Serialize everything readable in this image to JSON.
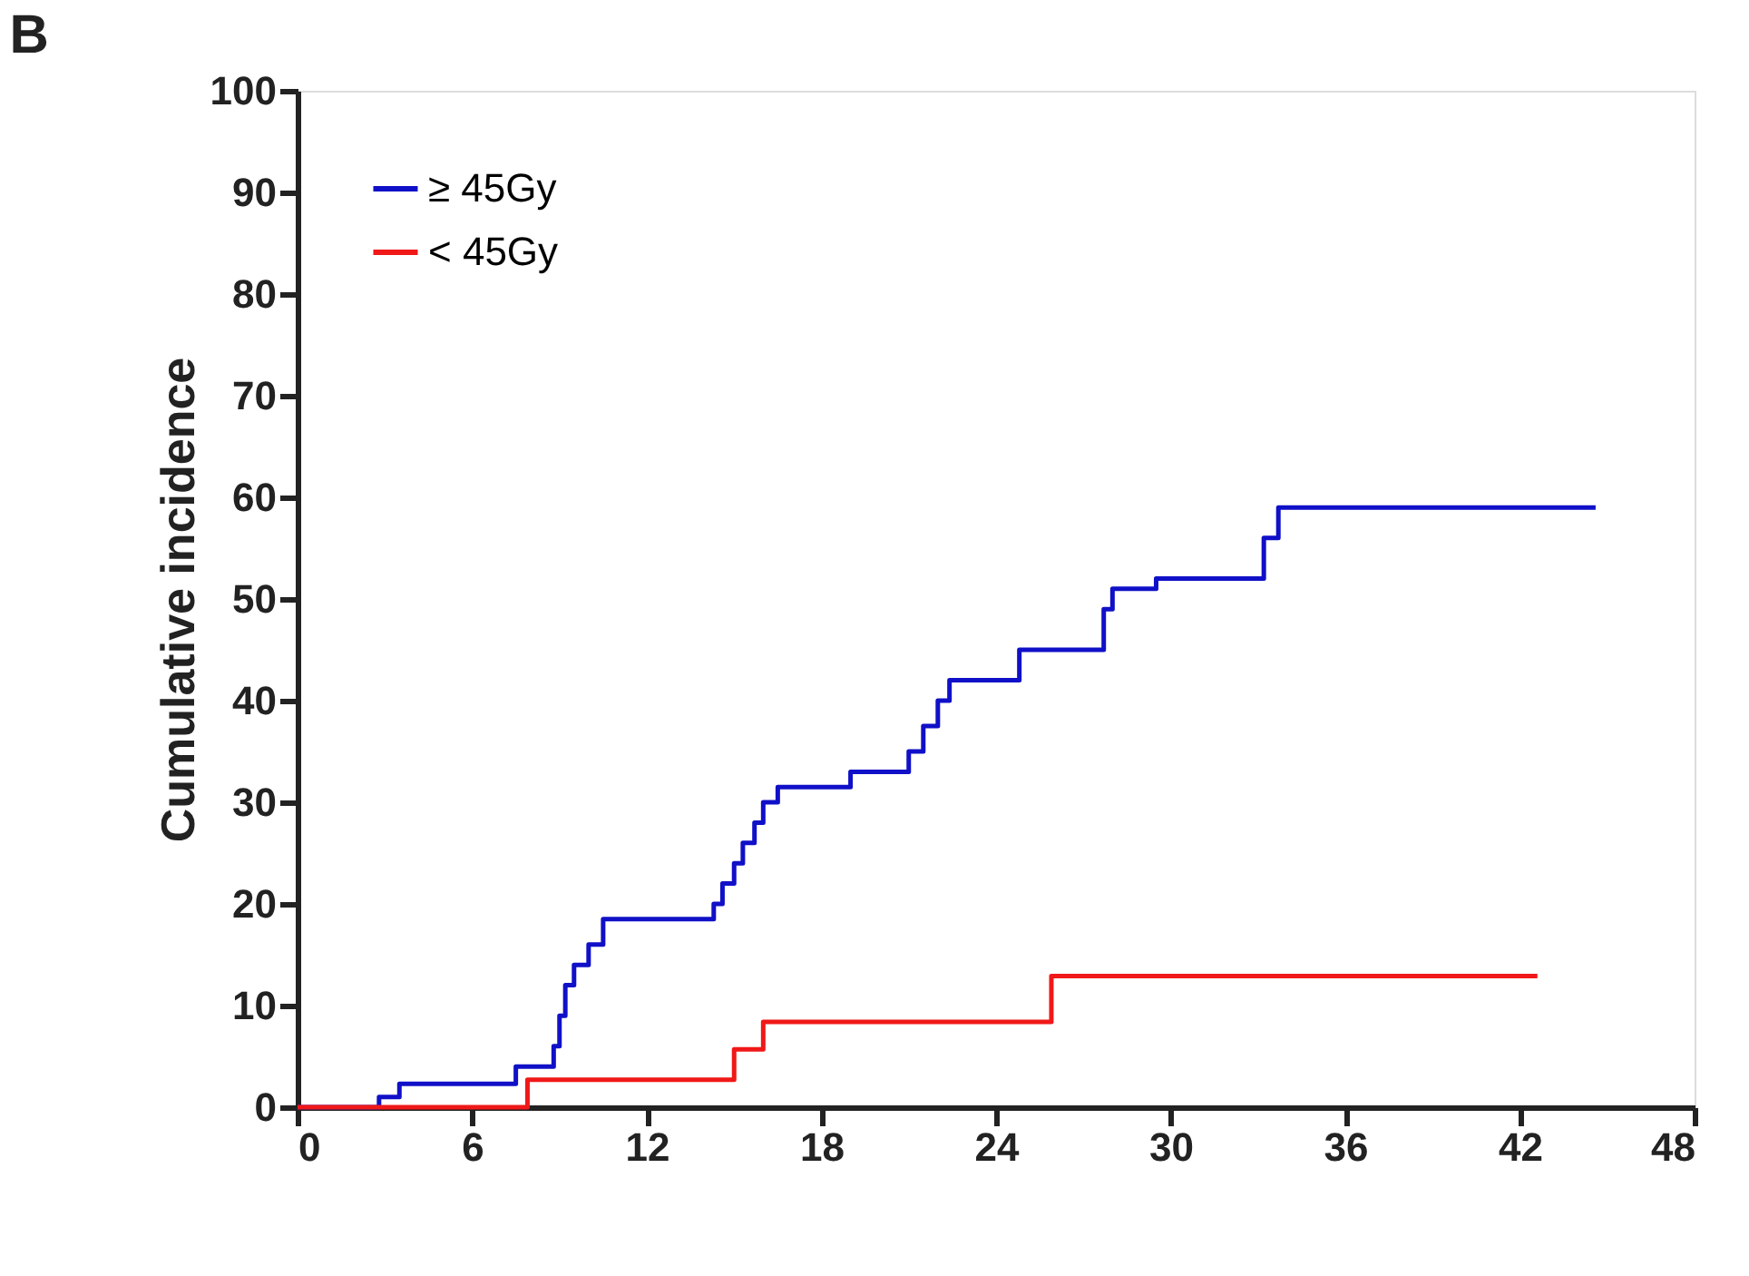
{
  "chart_data": {
    "type": "step",
    "title": "B",
    "ylabel": "Cumulative incidence",
    "xlim": [
      0,
      48
    ],
    "xticks": [
      0,
      6,
      12,
      18,
      24,
      30,
      36,
      42,
      48
    ],
    "ylim": [
      0,
      100
    ],
    "yticks": [
      0,
      10,
      20,
      30,
      40,
      50,
      60,
      70,
      80,
      90,
      100
    ],
    "grid": false,
    "legend": "top left",
    "line_style": "solid",
    "series": [
      {
        "name": "≥ 45Gy",
        "color": "#1010c8",
        "x": [
          0,
          2.8,
          3.5,
          7.5,
          8.8,
          9.0,
          9.2,
          9.5,
          10.0,
          10.5,
          14.3,
          14.6,
          15.0,
          15.3,
          15.7,
          16.0,
          16.5,
          19.0,
          21.0,
          21.5,
          22.0,
          22.4,
          24.8,
          27.7,
          28.0,
          29.5,
          33.2,
          33.7,
          44.6
        ],
        "values": [
          0,
          1,
          2.3,
          4,
          6,
          9,
          12,
          14,
          16,
          18.5,
          20,
          22,
          24,
          26,
          28,
          30,
          31.5,
          33,
          35,
          37.5,
          40,
          42,
          45,
          49,
          51,
          52,
          56,
          59,
          59
        ]
      },
      {
        "name": "< 45Gy",
        "color": "#f01818",
        "x": [
          0,
          7.9,
          15.0,
          16.0,
          25.9,
          42.6
        ],
        "values": [
          0,
          2.7,
          5.7,
          8.4,
          12.9,
          12.9
        ]
      }
    ]
  }
}
